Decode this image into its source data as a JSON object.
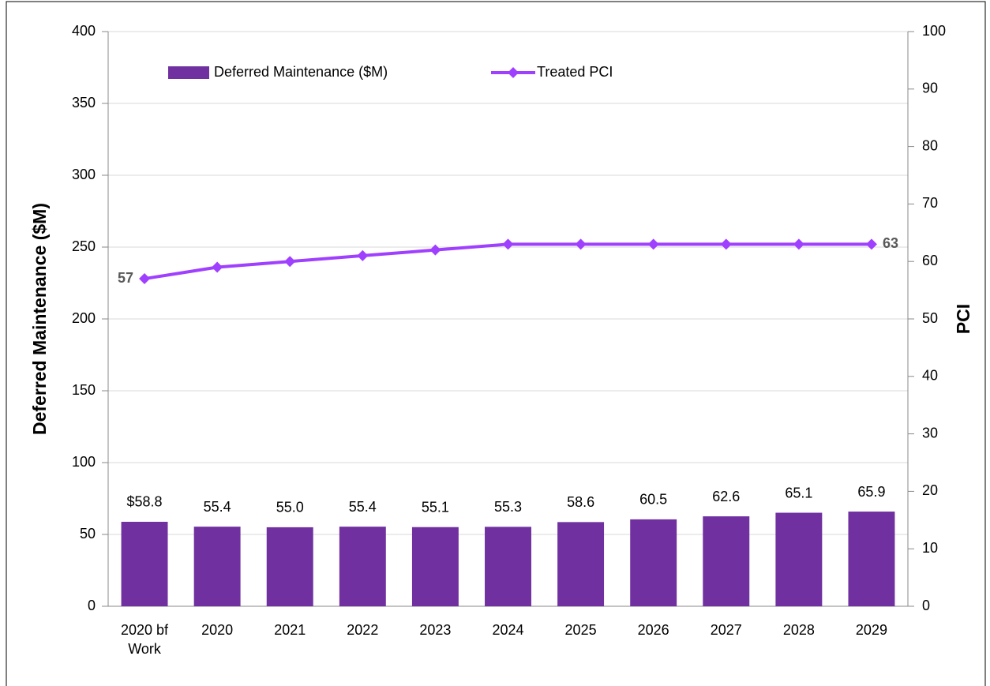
{
  "chart_data": {
    "type": "bar",
    "categories": [
      "2020 bf Work",
      "2020",
      "2021",
      "2022",
      "2023",
      "2024",
      "2025",
      "2026",
      "2027",
      "2028",
      "2029"
    ],
    "series": [
      {
        "name": "Deferred Maintenance ($M)",
        "type": "bar",
        "color": "#7030a0",
        "values": [
          58.8,
          55.4,
          55.0,
          55.4,
          55.1,
          55.3,
          58.6,
          60.5,
          62.6,
          65.1,
          65.9
        ],
        "value_labels": [
          "$58.8",
          "55.4",
          "55.0",
          "55.4",
          "55.1",
          "55.3",
          "58.6",
          "60.5",
          "62.6",
          "65.1",
          "65.9"
        ]
      },
      {
        "name": "Treated PCI",
        "type": "line",
        "axis": "y2",
        "color": "#a040ff",
        "values": [
          57,
          59,
          60,
          61,
          62,
          63,
          63,
          63,
          63,
          63,
          63
        ],
        "value_labels": [
          "57",
          null,
          null,
          null,
          null,
          null,
          null,
          null,
          null,
          null,
          "63"
        ]
      }
    ],
    "ylabel": "Deferred Maintenance ($M)",
    "y2label": "PCI",
    "ylim": [
      0,
      400
    ],
    "yticks": [
      0,
      50,
      100,
      150,
      200,
      250,
      300,
      350,
      400
    ],
    "y2lim": [
      0,
      100
    ],
    "y2ticks": [
      0,
      10,
      20,
      30,
      40,
      50,
      60,
      70,
      80,
      90,
      100
    ],
    "grid": true,
    "legend": "top"
  }
}
